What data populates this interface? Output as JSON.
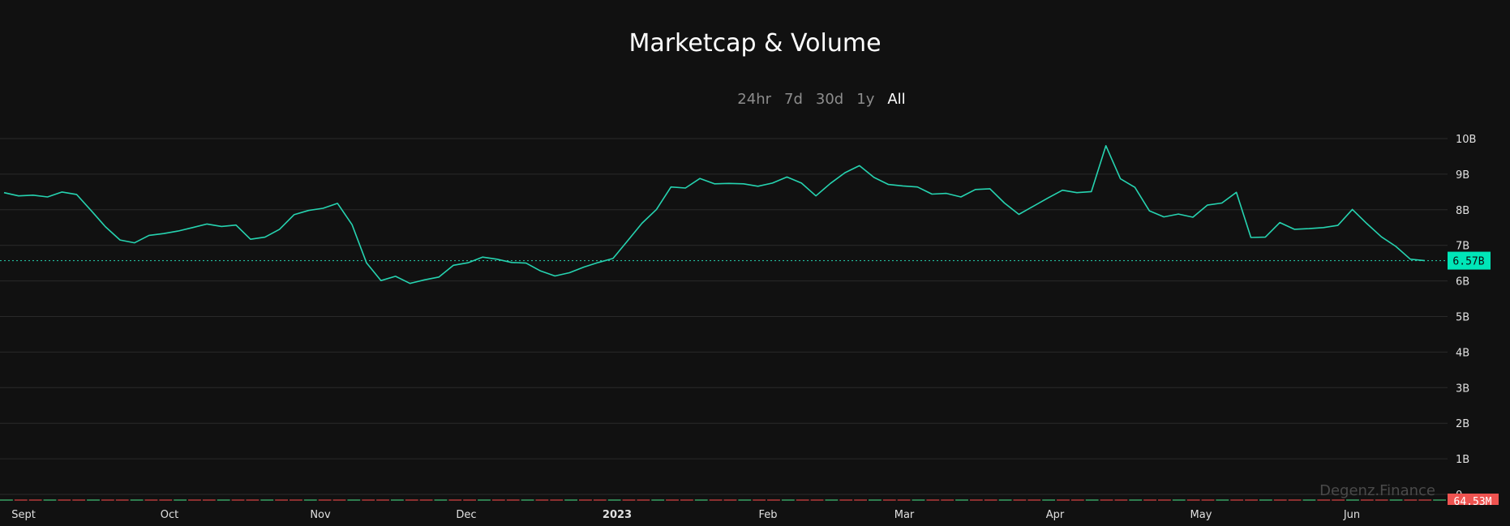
{
  "header": {
    "title": "Marketcap & Volume"
  },
  "ranges": [
    {
      "label": "24hr",
      "active": false
    },
    {
      "label": "7d",
      "active": false
    },
    {
      "label": "30d",
      "active": false
    },
    {
      "label": "1y",
      "active": false
    },
    {
      "label": "All",
      "active": true
    }
  ],
  "watermark": "Degenz.Finance",
  "colors": {
    "background": "#111111",
    "line": "#26d3b0",
    "grid": "#2a2a2a",
    "price_tag": "#00e6b8",
    "volume_tag": "#ef5350"
  },
  "chart_data": {
    "type": "line",
    "title": "Marketcap & Volume",
    "y_tick_labels": [
      "10B",
      "9B",
      "8B",
      "7B",
      "6B",
      "5B",
      "4B",
      "3B",
      "2B",
      "1B",
      "0"
    ],
    "ylim": [
      0,
      10
    ],
    "y_unit": "B",
    "x_tick_labels": [
      "Sept",
      "Oct",
      "Nov",
      "Dec",
      "2023",
      "Feb",
      "Mar",
      "Apr",
      "May",
      "Jun"
    ],
    "x_start": "2022-08-28",
    "x_end": "2023-06-16",
    "grid": true,
    "current_value_label": "6.57B",
    "current_value": 6.57,
    "volume_label": "64.53M",
    "series": [
      {
        "values": [
          8.48,
          8.39,
          8.41,
          8.36,
          8.5,
          8.43,
          7.98,
          7.52,
          7.15,
          7.07,
          7.28,
          7.33,
          7.4,
          7.5,
          7.6,
          7.53,
          7.57,
          7.17,
          7.23,
          7.45,
          7.86,
          7.98,
          8.04,
          8.18,
          7.58,
          6.51,
          6.01,
          6.13,
          5.93,
          6.03,
          6.11,
          6.44,
          6.51,
          6.67,
          6.61,
          6.52,
          6.5,
          6.28,
          6.14,
          6.23,
          6.39,
          6.52,
          6.63,
          7.12,
          7.62,
          8.01,
          8.64,
          8.61,
          8.88,
          8.73,
          8.74,
          8.73,
          8.66,
          8.75,
          8.92,
          8.75,
          8.39,
          8.74,
          9.04,
          9.24,
          8.91,
          8.71,
          8.67,
          8.64,
          8.44,
          8.46,
          8.36,
          8.57,
          8.59,
          8.19,
          7.87,
          8.1,
          8.33,
          8.55,
          8.48,
          8.51,
          9.8,
          8.87,
          8.63,
          7.97,
          7.8,
          7.88,
          7.79,
          8.13,
          8.19,
          8.49,
          7.22,
          7.23,
          7.64,
          7.45,
          7.47,
          7.5,
          7.56,
          8.01,
          7.61,
          7.24,
          6.97,
          6.61,
          6.57
        ]
      }
    ]
  }
}
